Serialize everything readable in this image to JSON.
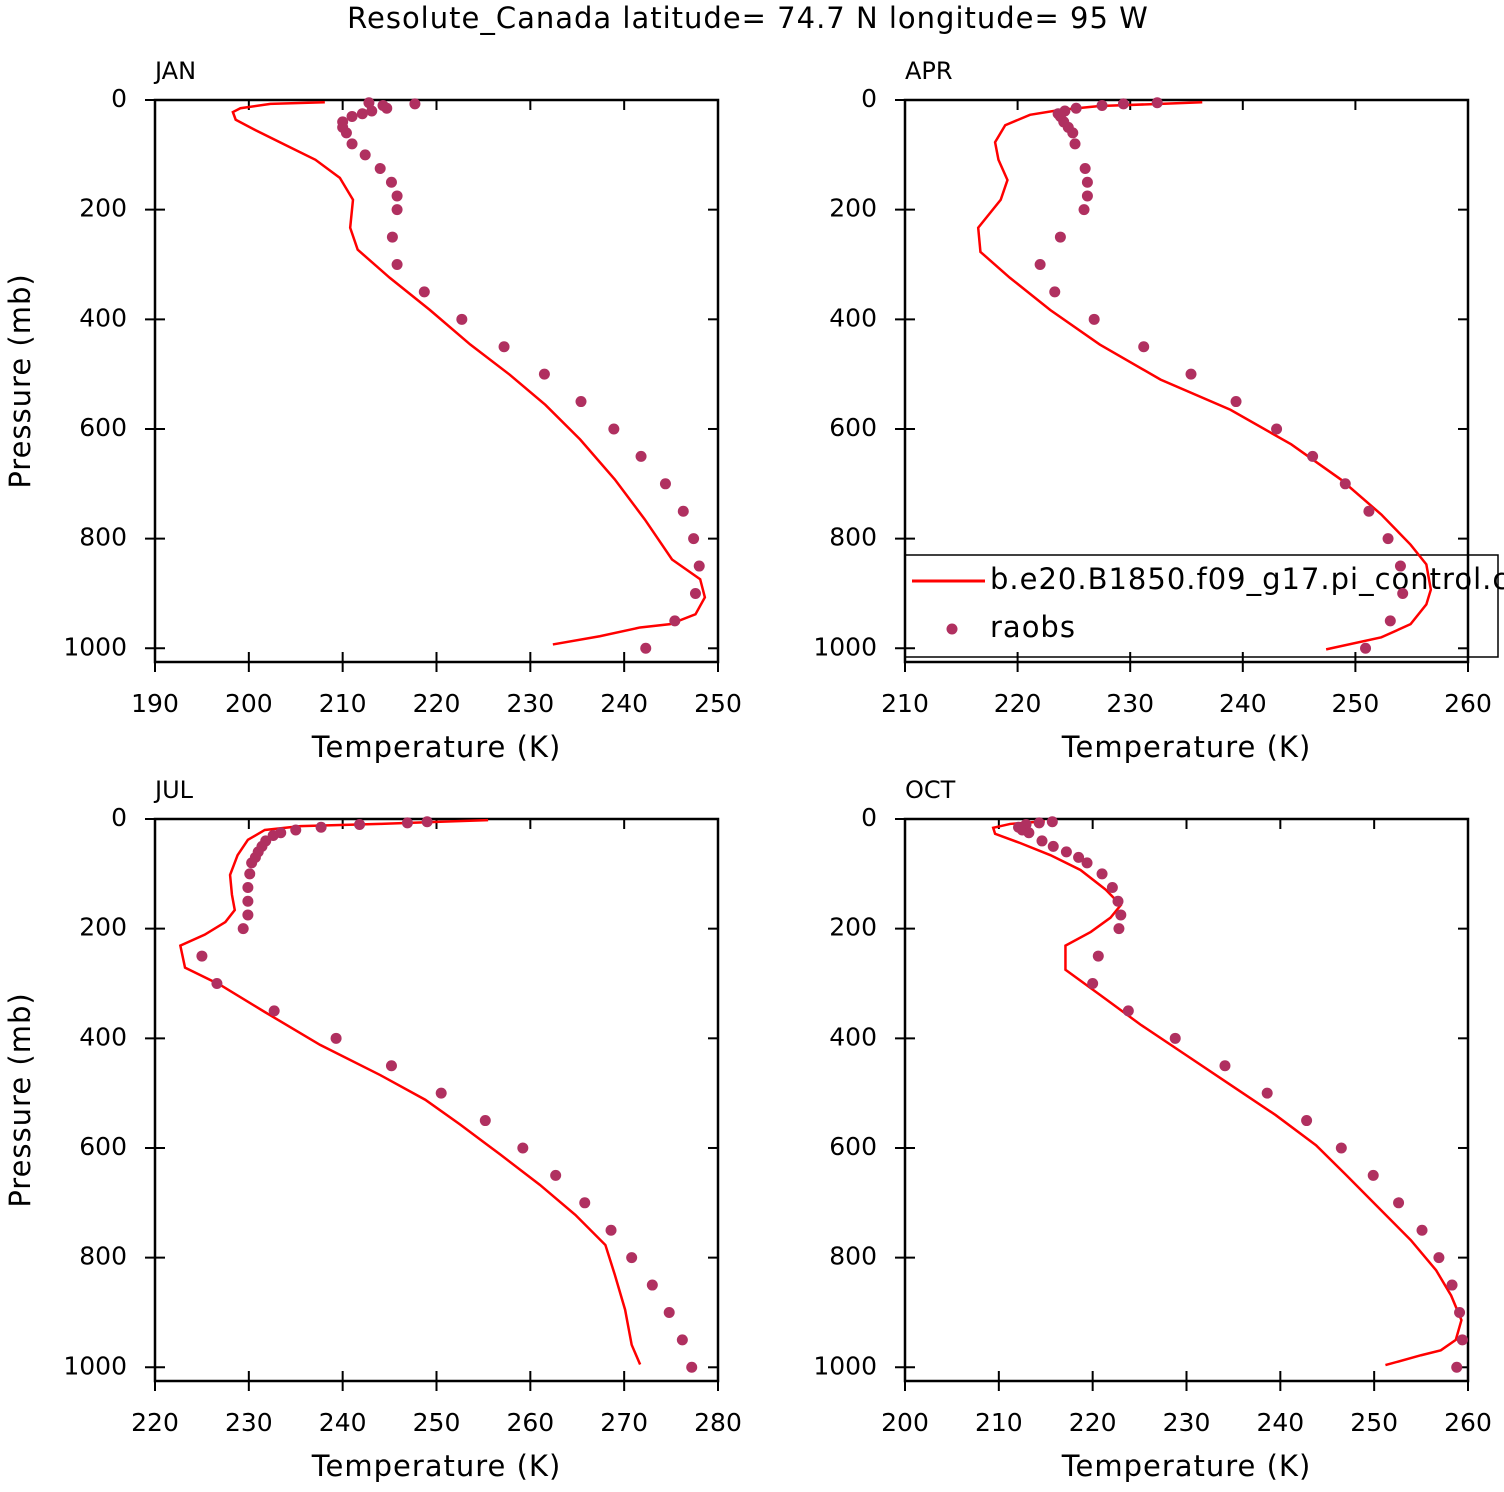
{
  "title": "Resolute_Canada  latitude= 74.7 N longitude= 95 W",
  "chart_data": [
    {
      "type": "line",
      "title": "JAN",
      "xlabel": "Temperature (K)",
      "ylabel": "Pressure (mb)",
      "xlim": [
        190,
        250
      ],
      "xticks": [
        190,
        200,
        210,
        220,
        230,
        240,
        250
      ],
      "ylim": [
        0,
        1025
      ],
      "y_reversed": true,
      "yticks": [
        0,
        200,
        400,
        600,
        800,
        1000
      ],
      "legend": null,
      "series": [
        {
          "style": "line",
          "color": "#ff0000",
          "x": [
            208.1,
            202.3,
            199.1,
            198.3,
            198.6,
            200.7,
            203.9,
            207.1,
            209.7,
            211.1,
            210.8,
            211.6,
            215.0,
            219.3,
            223.6,
            227.8,
            231.6,
            235.3,
            239.0,
            242.2,
            245.1,
            248.1,
            248.6,
            247.6,
            244.9,
            241.7,
            237.4,
            232.4
          ],
          "values": [
            4,
            7,
            15,
            22,
            36,
            55,
            82,
            109,
            142,
            182,
            233,
            273,
            324,
            383,
            446,
            501,
            556,
            619,
            692,
            765,
            838,
            874,
            907,
            938,
            956,
            962,
            978,
            993
          ]
        },
        {
          "style": "dots",
          "color": "#b03060",
          "x": [
            212.8,
            217.7,
            214.3,
            214.7,
            213.1,
            212.1,
            211.0,
            210.0,
            210.0,
            210.4,
            211.0,
            212.4,
            214.0,
            215.2,
            215.8,
            215.8,
            215.3,
            215.8,
            218.7,
            222.7,
            227.2,
            231.5,
            235.4,
            238.9,
            241.8,
            244.4,
            246.3,
            247.4,
            248.0,
            247.6,
            245.4,
            242.3
          ],
          "values": [
            5,
            7,
            10,
            15,
            20,
            25,
            30,
            40,
            50,
            60,
            80,
            100,
            125,
            150,
            175,
            200,
            250,
            300,
            350,
            400,
            450,
            500,
            550,
            600,
            650,
            700,
            750,
            800,
            850,
            900,
            950,
            1000
          ]
        }
      ]
    },
    {
      "type": "line",
      "title": "APR",
      "xlabel": "Temperature (K)",
      "ylabel": null,
      "xlim": [
        210,
        260
      ],
      "xticks": [
        210,
        220,
        230,
        240,
        250,
        260
      ],
      "ylim": [
        0,
        1025
      ],
      "y_reversed": true,
      "yticks": [
        0,
        200,
        400,
        600,
        800,
        1000
      ],
      "legend": "lower left",
      "series": [
        {
          "name": "b.e20.B1850.f09_g17.pi_control.c",
          "style": "line",
          "color": "#ff0000",
          "x": [
            236.4,
            232.7,
            227.3,
            223.8,
            221.1,
            218.9,
            218.0,
            218.3,
            219.1,
            218.5,
            216.5,
            216.7,
            219.3,
            222.9,
            227.3,
            232.7,
            238.9,
            244.3,
            248.7,
            252.3,
            254.9,
            256.3,
            256.7,
            256.3,
            254.9,
            252.3,
            247.4
          ],
          "values": [
            4,
            7,
            11,
            18,
            27,
            46,
            77,
            109,
            146,
            182,
            233,
            277,
            324,
            383,
            446,
            510,
            565,
            628,
            692,
            756,
            811,
            847,
            893,
            920,
            956,
            980,
            1002
          ]
        },
        {
          "name": "raobs",
          "style": "dots",
          "color": "#b03060",
          "x": [
            232.4,
            229.4,
            227.5,
            225.2,
            224.2,
            223.6,
            223.8,
            224.1,
            224.5,
            224.9,
            225.1,
            226.0,
            226.2,
            226.2,
            225.9,
            223.8,
            222.0,
            223.3,
            226.8,
            231.2,
            235.4,
            239.4,
            243.0,
            246.2,
            249.1,
            251.2,
            252.9,
            254.0,
            254.2,
            253.1,
            250.9
          ],
          "values": [
            5,
            7,
            10,
            15,
            20,
            25,
            30,
            40,
            50,
            60,
            80,
            125,
            150,
            175,
            200,
            250,
            300,
            350,
            400,
            450,
            500,
            550,
            600,
            650,
            700,
            750,
            800,
            850,
            900,
            950,
            1000
          ]
        }
      ]
    },
    {
      "type": "line",
      "title": "JUL",
      "xlabel": "Temperature (K)",
      "ylabel": "Pressure (mb)",
      "xlim": [
        220,
        280
      ],
      "xticks": [
        220,
        230,
        240,
        250,
        260,
        270,
        280
      ],
      "ylim": [
        0,
        1025
      ],
      "y_reversed": true,
      "yticks": [
        0,
        200,
        400,
        600,
        800,
        1000
      ],
      "legend": null,
      "series": [
        {
          "style": "line",
          "color": "#ff0000",
          "x": [
            255.5,
            250.4,
            244.0,
            235.5,
            231.7,
            229.9,
            228.8,
            228.0,
            228.2,
            228.5,
            227.5,
            225.3,
            222.7,
            223.2,
            226.9,
            231.7,
            237.6,
            244.0,
            248.8,
            252.5,
            256.8,
            261.0,
            264.8,
            268.0,
            269.0,
            270.1,
            270.8,
            271.7
          ],
          "values": [
            2,
            5,
            9,
            13,
            20,
            38,
            66,
            102,
            138,
            166,
            188,
            211,
            231,
            271,
            302,
            352,
            412,
            467,
            512,
            557,
            612,
            667,
            722,
            777,
            831,
            895,
            959,
            995
          ]
        },
        {
          "style": "dots",
          "color": "#b03060",
          "x": [
            249.0,
            246.9,
            241.8,
            237.7,
            235.0,
            233.4,
            232.6,
            231.8,
            231.4,
            231.0,
            230.7,
            230.3,
            230.1,
            229.9,
            229.9,
            229.9,
            229.4,
            225.0,
            226.6,
            232.7,
            239.3,
            245.2,
            250.5,
            255.2,
            259.2,
            262.7,
            265.8,
            268.6,
            270.8,
            273.0,
            274.8,
            276.2,
            277.2
          ],
          "values": [
            5,
            7,
            10,
            15,
            20,
            25,
            30,
            40,
            50,
            60,
            70,
            80,
            100,
            125,
            150,
            175,
            200,
            250,
            300,
            350,
            400,
            450,
            500,
            550,
            600,
            650,
            700,
            750,
            800,
            850,
            900,
            950,
            1000
          ]
        }
      ]
    },
    {
      "type": "line",
      "title": "OCT",
      "xlabel": "Temperature (K)",
      "ylabel": null,
      "xlim": [
        200,
        260
      ],
      "xticks": [
        200,
        210,
        220,
        230,
        240,
        250,
        260
      ],
      "ylim": [
        0,
        1025
      ],
      "y_reversed": true,
      "yticks": [
        0,
        200,
        400,
        600,
        800,
        1000
      ],
      "legend": null,
      "series": [
        {
          "style": "line",
          "color": "#ff0000",
          "x": [
            214.9,
            211.2,
            209.4,
            209.6,
            212.3,
            215.5,
            218.7,
            221.4,
            223.0,
            221.9,
            219.8,
            217.1,
            217.1,
            220.8,
            225.1,
            229.9,
            234.7,
            239.5,
            243.8,
            247.0,
            250.7,
            253.9,
            256.6,
            258.2,
            259.3,
            258.7,
            257.1,
            255.0,
            251.2
          ],
          "values": [
            4,
            9,
            16,
            27,
            44,
            66,
            93,
            129,
            157,
            180,
            206,
            231,
            275,
            321,
            375,
            430,
            485,
            540,
            595,
            649,
            713,
            768,
            823,
            869,
            914,
            950,
            969,
            978,
            996
          ]
        },
        {
          "style": "dots",
          "color": "#b03060",
          "x": [
            215.7,
            214.3,
            212.9,
            212.1,
            212.5,
            213.2,
            214.6,
            215.8,
            217.2,
            218.5,
            219.4,
            221.0,
            222.1,
            222.7,
            223.0,
            222.8,
            220.6,
            220.0,
            223.8,
            228.8,
            234.1,
            238.6,
            242.8,
            246.5,
            249.9,
            252.6,
            255.1,
            256.9,
            258.3,
            259.1,
            259.4,
            258.8
          ],
          "values": [
            5,
            7,
            10,
            15,
            20,
            25,
            40,
            50,
            60,
            70,
            80,
            100,
            125,
            150,
            175,
            200,
            250,
            300,
            350,
            400,
            450,
            500,
            550,
            600,
            650,
            700,
            750,
            800,
            850,
            900,
            950,
            1000
          ]
        }
      ]
    }
  ]
}
